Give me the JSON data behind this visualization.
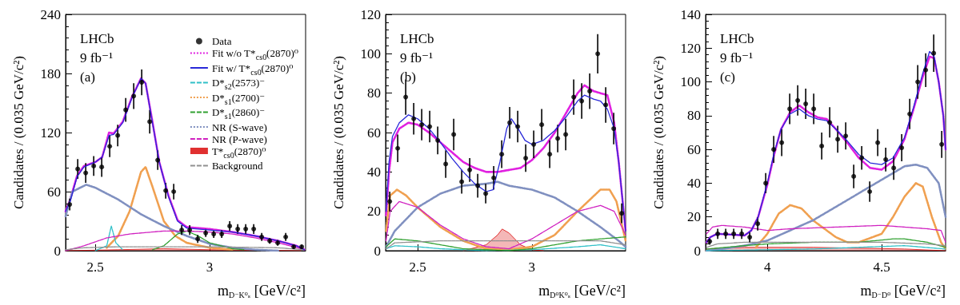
{
  "chart_data": [
    {
      "type": "line",
      "ylabel": "Candidates / (0.035 GeV/c²)",
      "xlabel": "m$_{D⁻K⁰ₛ}$ [GeV/c²]",
      "annotations": [
        "LHCb",
        "9 fb⁻¹",
        "(a)"
      ],
      "xlim": [
        2.37,
        3.42
      ],
      "xticks": [
        2.5,
        3
      ],
      "ylim": [
        0,
        240
      ],
      "yticks": [
        0,
        60,
        120,
        180,
        240
      ],
      "legend": "top right",
      "series": [
        {
          "name": "Data",
          "type": "scatter",
          "marker": "circle",
          "color": "#000000",
          "x": [
            2.388,
            2.423,
            2.458,
            2.493,
            2.528,
            2.563,
            2.598,
            2.633,
            2.668,
            2.703,
            2.738,
            2.773,
            2.808,
            2.843,
            2.878,
            2.913,
            2.948,
            2.983,
            3.018,
            3.053,
            3.088,
            3.123,
            3.158,
            3.193,
            3.228,
            3.263,
            3.298,
            3.333,
            3.368,
            3.403
          ],
          "values": [
            47,
            83,
            79,
            86,
            85,
            106,
            117,
            143,
            157,
            171,
            131,
            92,
            61,
            60,
            21,
            21,
            12,
            18,
            17,
            17,
            25,
            22,
            22,
            22,
            14,
            10,
            8,
            14,
            4,
            4
          ],
          "errors": [
            6,
            10,
            10,
            10,
            10,
            11,
            11,
            12,
            13,
            13,
            12,
            10,
            8,
            8,
            5,
            5,
            4,
            4,
            4,
            4,
            5,
            5,
            5,
            5,
            4,
            3,
            3,
            4,
            2,
            2
          ]
        },
        {
          "name": "Fit w/o T*$_{cs0}$(2870)⁰",
          "type": "line",
          "line_style": "dotted",
          "color": "#e020e0",
          "x": [
            2.37,
            2.39,
            2.42,
            2.45,
            2.5,
            2.53,
            2.56,
            2.58,
            2.62,
            2.66,
            2.7,
            2.72,
            2.75,
            2.78,
            2.82,
            2.86,
            2.9,
            3.0,
            3.1,
            3.2,
            3.3,
            3.38,
            3.415
          ],
          "values": [
            40,
            52,
            76,
            86,
            90,
            95,
            120,
            119,
            131,
            156,
            175,
            170,
            131,
            90,
            56,
            31,
            24,
            22,
            19,
            15,
            10,
            5,
            1
          ]
        },
        {
          "name": "Fit w/ T*$_{cs0}$(2870)⁰",
          "type": "line",
          "line_style": "solid",
          "color": "#2828d8",
          "x": [
            2.37,
            2.39,
            2.42,
            2.45,
            2.5,
            2.53,
            2.56,
            2.58,
            2.62,
            2.66,
            2.7,
            2.72,
            2.75,
            2.78,
            2.82,
            2.86,
            2.9,
            3.0,
            3.1,
            3.2,
            3.3,
            3.38,
            3.415
          ],
          "values": [
            40,
            50,
            75,
            85,
            90,
            95,
            117,
            118,
            130,
            155,
            175,
            170,
            130,
            90,
            55,
            30,
            23,
            21,
            19,
            15,
            10,
            5,
            1
          ]
        },
        {
          "name": "D*$_{s2}$(2573)⁻",
          "type": "line",
          "line_style": "dashed",
          "color": "#30c0c8",
          "x": [
            2.5,
            2.55,
            2.57,
            2.59,
            2.62
          ],
          "values": [
            0,
            5,
            25,
            8,
            1
          ]
        },
        {
          "name": "D*$_{s1}$(2700)⁻",
          "type": "line",
          "line_style": "dotted",
          "color": "#f0a050",
          "x": [
            2.55,
            2.6,
            2.65,
            2.7,
            2.72,
            2.75,
            2.8,
            2.85,
            2.9,
            3.0,
            3.1
          ],
          "values": [
            3,
            15,
            40,
            80,
            85,
            65,
            30,
            15,
            8,
            3,
            1
          ]
        },
        {
          "name": "D*$_{s1}$(2860)⁻",
          "type": "line",
          "line_style": "dashed",
          "color": "#30a030",
          "x": [
            2.75,
            2.8,
            2.86,
            2.9,
            2.95,
            3.0,
            3.1,
            3.15
          ],
          "values": [
            1,
            5,
            17,
            20,
            15,
            8,
            2,
            1
          ]
        },
        {
          "name": "NR (S-wave)",
          "type": "line",
          "line_style": "dotted",
          "color": "#8090c0",
          "x": [
            2.37,
            2.4,
            2.46,
            2.5,
            2.6,
            2.7,
            2.8,
            2.9,
            3.0,
            3.1,
            3.2,
            3.3
          ],
          "values": [
            35,
            60,
            67,
            64,
            52,
            37,
            25,
            15,
            7,
            3,
            1,
            0
          ]
        },
        {
          "name": "NR (P-wave)",
          "type": "line",
          "line_style": "dashed",
          "color": "#d020c0",
          "x": [
            2.37,
            2.45,
            2.55,
            2.65,
            2.8,
            2.9,
            3.0,
            3.1,
            3.2,
            3.3,
            3.4
          ],
          "values": [
            0,
            5,
            13,
            17,
            20,
            20,
            19,
            17,
            13,
            8,
            2
          ]
        },
        {
          "name": "T*$_{cs0}$(2870)⁰",
          "type": "area",
          "color": "#e03030",
          "x": [
            2.37,
            2.6,
            2.8,
            3.0,
            3.4
          ],
          "values": [
            0,
            1,
            2,
            1,
            0
          ]
        },
        {
          "name": "Background",
          "type": "line",
          "line_style": "dashed",
          "color": "#909090",
          "x": [
            2.37,
            2.45,
            2.6,
            3.0,
            3.3,
            3.415
          ],
          "values": [
            1,
            3,
            4,
            4,
            3,
            1
          ]
        }
      ]
    },
    {
      "type": "line",
      "ylabel": "Candidates / (0.035 GeV/c²)",
      "xlabel": "m$_{D⁰K⁰ₛ}$ [GeV/c²]",
      "annotations": [
        "LHCb",
        "9 fb⁻¹",
        "(b)"
      ],
      "xlim": [
        2.36,
        3.41
      ],
      "xticks": [
        2.5,
        3
      ],
      "ylim": [
        0,
        120
      ],
      "yticks": [
        0,
        20,
        40,
        60,
        80,
        100,
        120
      ],
      "series": [
        {
          "type": "scatter",
          "marker": "circle",
          "color": "#000000",
          "x": [
            2.378,
            2.413,
            2.448,
            2.483,
            2.518,
            2.553,
            2.588,
            2.623,
            2.658,
            2.693,
            2.728,
            2.763,
            2.798,
            2.833,
            2.868,
            2.903,
            2.938,
            2.973,
            3.008,
            3.043,
            3.078,
            3.113,
            3.148,
            3.183,
            3.218,
            3.253,
            3.288,
            3.323,
            3.358,
            3.393
          ],
          "values": [
            25,
            52,
            78,
            67,
            64,
            63,
            56,
            44,
            59,
            35,
            41,
            33,
            29,
            37,
            49,
            65,
            63,
            47,
            54,
            64,
            49,
            57,
            59,
            78,
            76,
            81,
            100,
            74,
            62,
            19
          ],
          "errors": [
            5,
            7,
            9,
            8,
            8,
            8,
            7,
            7,
            8,
            6,
            6,
            6,
            5,
            6,
            7,
            8,
            8,
            7,
            7,
            8,
            7,
            7,
            8,
            9,
            9,
            9,
            10,
            9,
            8,
            5
          ]
        },
        {
          "type": "line",
          "line_style": "dotted",
          "color": "#e020e0",
          "x": [
            2.362,
            2.375,
            2.39,
            2.42,
            2.46,
            2.5,
            2.55,
            2.6,
            2.65,
            2.7,
            2.75,
            2.8,
            2.85,
            2.9,
            2.95,
            3.0,
            3.05,
            3.1,
            3.15,
            3.2,
            3.23,
            3.27,
            3.3,
            3.33,
            3.36,
            3.38,
            3.41
          ],
          "values": [
            18,
            40,
            55,
            62,
            65,
            64,
            60,
            55,
            50,
            45,
            42,
            40,
            40,
            41,
            42,
            46,
            52,
            60,
            70,
            80,
            84,
            81,
            80,
            79,
            65,
            45,
            10
          ]
        },
        {
          "type": "line",
          "line_style": "solid",
          "color": "#2828d8",
          "x": [
            2.362,
            2.375,
            2.39,
            2.42,
            2.46,
            2.5,
            2.55,
            2.6,
            2.65,
            2.7,
            2.75,
            2.8,
            2.83,
            2.86,
            2.89,
            2.91,
            2.94,
            2.97,
            3.0,
            3.05,
            3.1,
            3.15,
            3.2,
            3.23,
            3.27,
            3.3,
            3.33,
            3.36,
            3.38,
            3.41
          ],
          "values": [
            20,
            45,
            58,
            65,
            69,
            67,
            62,
            55,
            47,
            40,
            34,
            30,
            31,
            45,
            62,
            67,
            62,
            56,
            54,
            56,
            61,
            68,
            76,
            79,
            77,
            76,
            72,
            62,
            45,
            10
          ]
        },
        {
          "type": "line",
          "line_style": "dashed",
          "color": "#30c0c8",
          "x": [
            2.362,
            2.4,
            2.5,
            2.6,
            2.8,
            3.0,
            3.2,
            3.3,
            3.41
          ],
          "values": [
            1,
            2.5,
            2,
            1,
            0,
            0.5,
            2,
            3,
            1
          ]
        },
        {
          "type": "line",
          "line_style": "dotted",
          "color": "#f0a050",
          "x": [
            2.362,
            2.38,
            2.41,
            2.45,
            2.5,
            2.6,
            2.7,
            2.8,
            2.9,
            3.0,
            3.1,
            3.2,
            3.3,
            3.34,
            3.37,
            3.41
          ],
          "values": [
            10,
            28,
            31,
            28,
            22,
            12,
            5,
            1,
            0.5,
            2,
            8,
            20,
            31,
            31,
            25,
            5
          ]
        },
        {
          "type": "line",
          "line_style": "dashed",
          "color": "#30a030",
          "x": [
            2.362,
            2.4,
            2.5,
            2.6,
            2.7,
            2.9,
            3.0,
            3.1,
            3.2,
            3.3,
            3.41
          ],
          "values": [
            2,
            6,
            5,
            3,
            1,
            0,
            1,
            3,
            5,
            6,
            7
          ]
        },
        {
          "type": "line",
          "line_style": "dotted",
          "color": "#8090c0",
          "x": [
            2.362,
            2.4,
            2.5,
            2.6,
            2.7,
            2.8,
            2.85,
            2.9,
            3.0,
            3.1,
            3.2,
            3.3,
            3.38,
            3.41
          ],
          "values": [
            2,
            10,
            22,
            29,
            33,
            34,
            35,
            33,
            31,
            27,
            20,
            12,
            5,
            2
          ]
        },
        {
          "type": "line",
          "line_style": "dashed",
          "color": "#d020c0",
          "x": [
            2.362,
            2.38,
            2.42,
            2.5,
            2.6,
            2.7,
            2.8,
            2.9,
            3.0,
            3.1,
            3.2,
            3.3,
            3.36,
            3.41
          ],
          "values": [
            5,
            20,
            25,
            22,
            13,
            6,
            2,
            1,
            6,
            13,
            20,
            23,
            20,
            8
          ]
        },
        {
          "type": "area",
          "color": "#e03030",
          "x": [
            2.7,
            2.8,
            2.85,
            2.87,
            2.9,
            2.95,
            3.0,
            3.05
          ],
          "values": [
            0,
            3,
            8,
            11,
            9,
            3,
            0.5,
            0
          ]
        },
        {
          "type": "line",
          "line_style": "dashed",
          "color": "#909090",
          "x": [
            2.362,
            2.4,
            2.6,
            3.0,
            3.3,
            3.41
          ],
          "values": [
            1,
            4,
            5,
            5,
            5,
            3
          ]
        }
      ]
    },
    {
      "type": "line",
      "ylabel": "Candidates / (0.035 GeV/c²)",
      "xlabel": "m$_{D⁻D⁰}$ [GeV/c²]",
      "annotations": [
        "LHCb",
        "9 fb⁻¹",
        "(c)"
      ],
      "xlim": [
        3.73,
        4.78
      ],
      "xticks": [
        4,
        4.5
      ],
      "ylim": [
        0,
        140
      ],
      "yticks": [
        0,
        20,
        40,
        60,
        80,
        100,
        120,
        140
      ],
      "series": [
        {
          "type": "scatter",
          "marker": "circle",
          "color": "#000000",
          "x": [
            3.748,
            3.783,
            3.818,
            3.853,
            3.888,
            3.923,
            3.958,
            3.993,
            4.028,
            4.063,
            4.098,
            4.133,
            4.168,
            4.203,
            4.238,
            4.273,
            4.308,
            4.343,
            4.378,
            4.413,
            4.448,
            4.483,
            4.518,
            4.553,
            4.588,
            4.623,
            4.658,
            4.693,
            4.728,
            4.763
          ],
          "values": [
            5.5,
            10,
            10,
            10,
            10,
            8,
            16,
            40,
            60,
            64,
            84,
            89,
            87,
            84,
            62,
            76,
            66,
            68,
            44,
            55,
            35,
            64,
            54,
            49,
            61,
            81,
            100,
            107,
            117,
            63
          ],
          "errors": [
            2,
            3,
            3,
            3,
            3,
            3,
            4,
            6,
            8,
            8,
            9,
            9,
            9,
            9,
            8,
            9,
            8,
            8,
            7,
            7,
            6,
            8,
            7,
            7,
            8,
            9,
            10,
            10,
            11,
            8
          ]
        },
        {
          "type": "line",
          "line_style": "dotted",
          "color": "#e020e0",
          "x": [
            3.734,
            3.75,
            3.78,
            3.85,
            3.9,
            3.93,
            3.96,
            4.0,
            4.03,
            4.06,
            4.1,
            4.14,
            4.18,
            4.22,
            4.26,
            4.3,
            4.35,
            4.4,
            4.45,
            4.5,
            4.55,
            4.6,
            4.64,
            4.68,
            4.71,
            4.73,
            4.75,
            4.77,
            4.78
          ],
          "values": [
            5,
            8,
            10,
            9.5,
            9,
            12,
            20,
            39,
            57,
            72,
            82,
            86,
            82,
            79,
            78,
            72,
            64,
            55,
            49,
            48,
            53,
            66,
            84,
            103,
            115,
            114,
            100,
            80,
            60
          ]
        },
        {
          "type": "line",
          "line_style": "solid",
          "color": "#2828d8",
          "x": [
            3.734,
            3.75,
            3.78,
            3.85,
            3.9,
            3.93,
            3.96,
            4.0,
            4.03,
            4.06,
            4.1,
            4.14,
            4.18,
            4.22,
            4.26,
            4.3,
            4.35,
            4.4,
            4.45,
            4.5,
            4.55,
            4.6,
            4.64,
            4.68,
            4.71,
            4.73,
            4.75,
            4.77,
            4.78
          ],
          "values": [
            5,
            8,
            10,
            9.5,
            9,
            12,
            20,
            40,
            58,
            72,
            81,
            84,
            80,
            78,
            77,
            72,
            65,
            57,
            52,
            51,
            55,
            67,
            85,
            105,
            118,
            115,
            100,
            80,
            60
          ]
        },
        {
          "type": "line",
          "line_style": "dashed",
          "color": "#30c0c8",
          "x": [
            3.734,
            4.2,
            4.4,
            4.6,
            4.78
          ],
          "values": [
            0,
            1,
            2,
            3,
            1
          ]
        },
        {
          "type": "line",
          "line_style": "dotted",
          "color": "#f0a050",
          "x": [
            3.95,
            4.0,
            4.05,
            4.1,
            4.15,
            4.2,
            4.3,
            4.35,
            4.4,
            4.5,
            4.55,
            4.6,
            4.65,
            4.68,
            4.72,
            4.76,
            4.78
          ],
          "values": [
            2,
            10,
            22,
            27,
            25,
            18,
            8,
            5,
            5,
            10,
            20,
            32,
            40,
            38,
            20,
            5,
            1
          ]
        },
        {
          "type": "line",
          "line_style": "dashed",
          "color": "#30a030",
          "x": [
            3.734,
            3.9,
            4.0,
            4.2,
            4.4,
            4.55,
            4.6,
            4.7,
            4.78
          ],
          "values": [
            1,
            3,
            4,
            5,
            5,
            7,
            7,
            5,
            2
          ]
        },
        {
          "type": "line",
          "line_style": "dotted",
          "color": "#8090c0",
          "x": [
            3.734,
            3.8,
            3.9,
            4.0,
            4.1,
            4.2,
            4.3,
            4.4,
            4.5,
            4.6,
            4.65,
            4.7,
            4.75,
            4.78
          ],
          "values": [
            0,
            1,
            3,
            6,
            12,
            18,
            26,
            34,
            42,
            50,
            51,
            49,
            40,
            20
          ]
        },
        {
          "type": "line",
          "line_style": "dashed",
          "color": "#d020c0",
          "x": [
            3.734,
            3.76,
            3.8,
            3.9,
            4.0,
            4.1,
            4.3,
            4.5,
            4.6,
            4.7,
            4.76,
            4.78
          ],
          "values": [
            10,
            14,
            15,
            14,
            12,
            13,
            14,
            15,
            14,
            13,
            12,
            5
          ]
        },
        {
          "type": "area",
          "color": "#e03030",
          "x": [
            3.734,
            3.9,
            4.2,
            4.4,
            4.6,
            4.78
          ],
          "values": [
            1,
            2,
            2,
            1.5,
            1,
            0
          ]
        },
        {
          "type": "line",
          "line_style": "dashed",
          "color": "#909090",
          "x": [
            3.734,
            3.78,
            3.9,
            4.2,
            4.5,
            4.7,
            4.78
          ],
          "values": [
            2,
            4,
            5,
            5,
            5,
            4,
            3
          ]
        }
      ]
    }
  ]
}
